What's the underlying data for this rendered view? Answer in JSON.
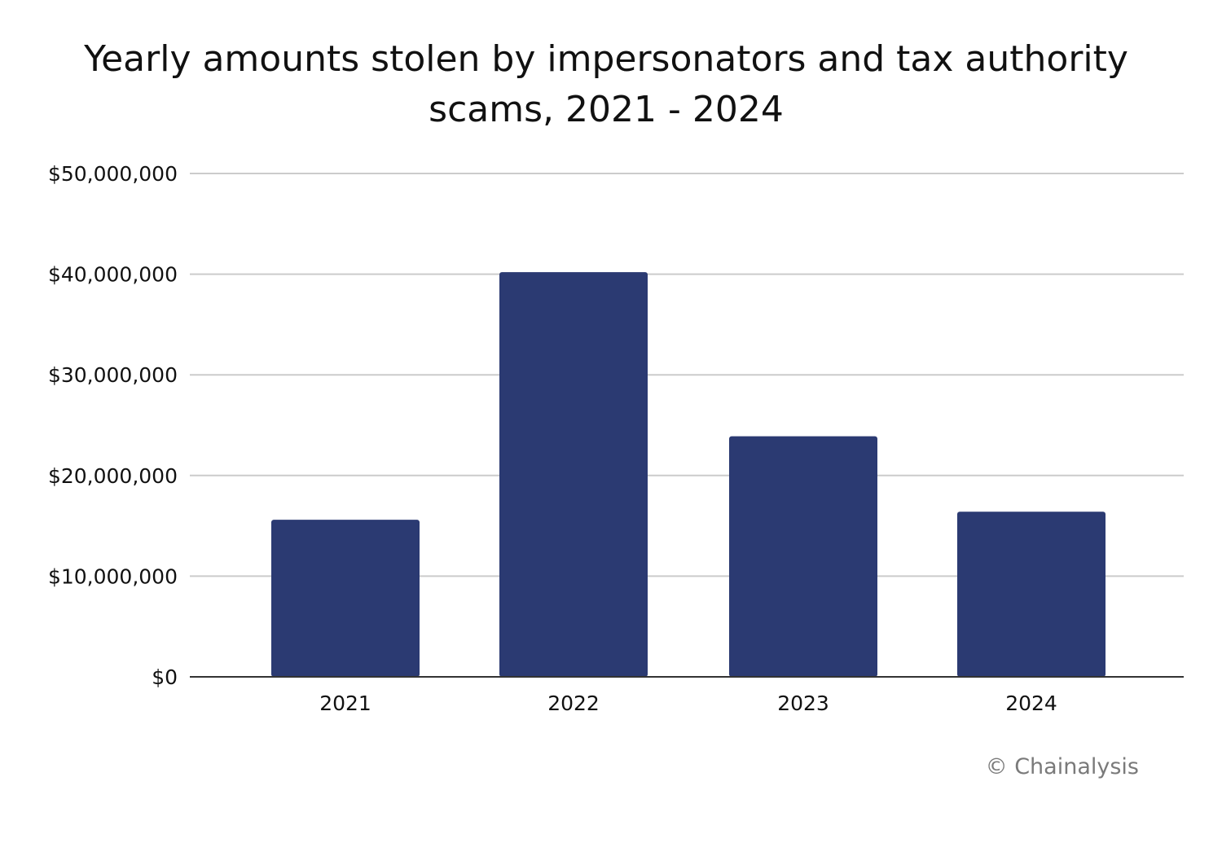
{
  "chart_data": {
    "type": "bar",
    "title_line1": "Yearly amounts stolen by impersonators and tax authority",
    "title_line2": "scams, 2021 - 2024",
    "categories": [
      "2021",
      "2022",
      "2023",
      "2024"
    ],
    "values": [
      15600000,
      40200000,
      23900000,
      16400000
    ],
    "ylim": [
      0,
      50000000
    ],
    "yticks": [
      0,
      10000000,
      20000000,
      30000000,
      40000000,
      50000000
    ],
    "ytick_labels": [
      "$0",
      "$10,000,000",
      "$20,000,000",
      "$30,000,000",
      "$40,000,000",
      "$50,000,000"
    ],
    "xlabel": "",
    "ylabel": "",
    "grid": true,
    "legend": "none",
    "bar_color": "#2b3a72",
    "grid_color": "#cccccc",
    "axis_color": "#333333"
  },
  "credit": "© Chainalysis"
}
